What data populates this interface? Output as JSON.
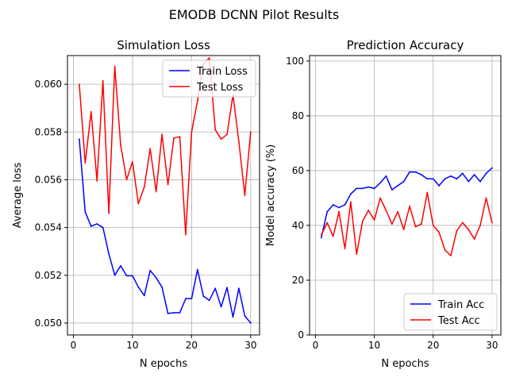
{
  "suptitle": "EMODB DCNN Pilot Results",
  "chart_data": [
    {
      "type": "line",
      "title": "Simulation Loss",
      "xlabel": "N epochs",
      "ylabel": "Average loss",
      "xlim": [
        -1,
        31.5
      ],
      "ylim": [
        0.0495,
        0.0612
      ],
      "xticks": [
        0,
        10,
        20,
        30
      ],
      "yticks": [
        0.05,
        0.052,
        0.054,
        0.056,
        0.058,
        0.06
      ],
      "ytick_decimals": 3,
      "grid": true,
      "legend": "top-right",
      "x": [
        1,
        2,
        3,
        4,
        5,
        6,
        7,
        8,
        9,
        10,
        11,
        12,
        13,
        14,
        15,
        16,
        17,
        18,
        19,
        20,
        21,
        22,
        23,
        24,
        25,
        26,
        27,
        28,
        29,
        30
      ],
      "series": [
        {
          "name": "Train Loss",
          "color": "#0000ff",
          "values": [
            0.0577,
            0.05465,
            0.05405,
            0.05415,
            0.054,
            0.0529,
            0.052,
            0.0524,
            0.05198,
            0.05198,
            0.0515,
            0.05115,
            0.0522,
            0.0519,
            0.0515,
            0.0504,
            0.05043,
            0.05043,
            0.05102,
            0.05102,
            0.05224,
            0.05112,
            0.05095,
            0.05145,
            0.05068,
            0.05148,
            0.05025,
            0.05145,
            0.0503,
            0.05
          ]
        },
        {
          "name": "Test Loss",
          "color": "#ff0000",
          "values": [
            0.06,
            0.0567,
            0.05885,
            0.05595,
            0.06015,
            0.0546,
            0.06075,
            0.05745,
            0.056,
            0.05675,
            0.055,
            0.0557,
            0.0573,
            0.0555,
            0.0579,
            0.0558,
            0.05775,
            0.0578,
            0.0537,
            0.058,
            0.0593,
            0.06085,
            0.0611,
            0.0581,
            0.0577,
            0.0579,
            0.05955,
            0.0576,
            0.05535,
            0.058
          ]
        }
      ]
    },
    {
      "type": "line",
      "title": "Prediction Accuracy",
      "xlabel": "N epochs",
      "ylabel": "Model accuracy (%)",
      "xlim": [
        -1,
        31.5
      ],
      "ylim": [
        0,
        102
      ],
      "xticks": [
        0,
        10,
        20,
        30
      ],
      "yticks": [
        0,
        20,
        40,
        60,
        80,
        100
      ],
      "ytick_decimals": 0,
      "grid": true,
      "legend": "bottom-right",
      "x": [
        1,
        2,
        3,
        4,
        5,
        6,
        7,
        8,
        9,
        10,
        11,
        12,
        13,
        14,
        15,
        16,
        17,
        18,
        19,
        20,
        21,
        22,
        23,
        24,
        25,
        26,
        27,
        28,
        29,
        30
      ],
      "series": [
        {
          "name": "Train Acc",
          "color": "#0000ff",
          "values": [
            35.5,
            45.0,
            47.5,
            46.5,
            47.5,
            51.5,
            53.5,
            53.5,
            54.0,
            53.5,
            55.5,
            58.0,
            53.0,
            54.5,
            56.0,
            59.5,
            59.5,
            58.5,
            57.0,
            57.0,
            54.5,
            57.0,
            58.0,
            57.0,
            59.0,
            56.0,
            58.5,
            56.0,
            59.0,
            61.0
          ]
        },
        {
          "name": "Test Acc",
          "color": "#ff0000",
          "values": [
            36.5,
            41.0,
            36.0,
            45.0,
            31.5,
            48.5,
            29.5,
            41.5,
            45.5,
            42.0,
            50.0,
            45.5,
            40.5,
            45.0,
            38.5,
            47.0,
            39.5,
            40.5,
            52.0,
            40.0,
            37.5,
            31.0,
            29.0,
            38.0,
            41.0,
            38.5,
            35.0,
            40.0,
            50.0,
            41.0
          ]
        }
      ]
    }
  ]
}
